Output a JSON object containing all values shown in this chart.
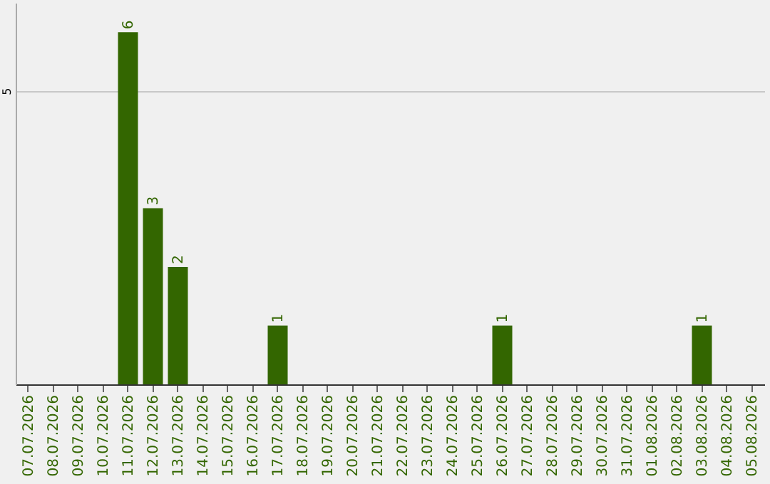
{
  "chart_data": {
    "type": "bar",
    "categories": [
      "07.07.2026",
      "08.07.2026",
      "09.07.2026",
      "10.07.2026",
      "11.07.2026",
      "12.07.2026",
      "13.07.2026",
      "14.07.2026",
      "15.07.2026",
      "16.07.2026",
      "17.07.2026",
      "18.07.2026",
      "19.07.2026",
      "20.07.2026",
      "21.07.2026",
      "22.07.2026",
      "23.07.2026",
      "24.07.2026",
      "25.07.2026",
      "26.07.2026",
      "27.07.2026",
      "28.07.2026",
      "29.07.2026",
      "30.07.2026",
      "31.07.2026",
      "01.08.2026",
      "02.08.2026",
      "03.08.2026",
      "04.08.2026",
      "05.08.2026"
    ],
    "values": [
      null,
      null,
      null,
      null,
      6,
      3,
      2,
      null,
      null,
      null,
      1,
      null,
      null,
      null,
      null,
      null,
      null,
      null,
      null,
      1,
      null,
      null,
      null,
      null,
      null,
      null,
      null,
      1,
      null,
      null
    ],
    "color": "#336600",
    "ylim": [
      0,
      6.5
    ],
    "yticks": [
      5
    ],
    "grid": "y",
    "data_labels": true
  }
}
